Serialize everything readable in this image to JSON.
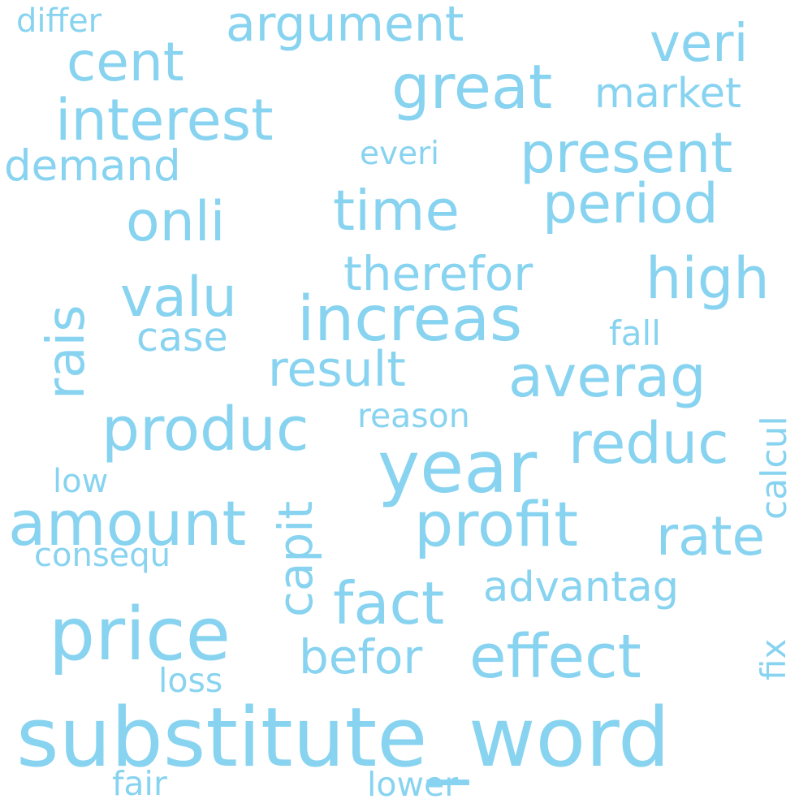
{
  "color": "#87d3f0",
  "words": [
    {
      "id": "substitute_word",
      "text": "substitute_word"
    },
    {
      "id": "price",
      "text": "price"
    },
    {
      "id": "year",
      "text": "year"
    },
    {
      "id": "increas",
      "text": "increas"
    },
    {
      "id": "amount",
      "text": "amount"
    },
    {
      "id": "profit",
      "text": "profit"
    },
    {
      "id": "great",
      "text": "great"
    },
    {
      "id": "effect",
      "text": "effect"
    },
    {
      "id": "produc",
      "text": "produc"
    },
    {
      "id": "fact",
      "text": "fact"
    },
    {
      "id": "interest",
      "text": "interest"
    },
    {
      "id": "averag",
      "text": "averag"
    },
    {
      "id": "reduc",
      "text": "reduc"
    },
    {
      "id": "high",
      "text": "high"
    },
    {
      "id": "time",
      "text": "time"
    },
    {
      "id": "present",
      "text": "present"
    },
    {
      "id": "period",
      "text": "period"
    },
    {
      "id": "valu",
      "text": "valu"
    },
    {
      "id": "onli",
      "text": "onli"
    },
    {
      "id": "rate",
      "text": "rate"
    },
    {
      "id": "cent",
      "text": "cent"
    },
    {
      "id": "rais",
      "text": "rais"
    },
    {
      "id": "veri",
      "text": "veri"
    },
    {
      "id": "argument",
      "text": "argument"
    },
    {
      "id": "befor",
      "text": "befor"
    },
    {
      "id": "result",
      "text": "result"
    },
    {
      "id": "capit",
      "text": "capit"
    },
    {
      "id": "therefor",
      "text": "therefor"
    },
    {
      "id": "market",
      "text": "market"
    },
    {
      "id": "advantag",
      "text": "advantag"
    },
    {
      "id": "demand",
      "text": "demand"
    },
    {
      "id": "case",
      "text": "case"
    },
    {
      "id": "calcul",
      "text": "calcul"
    },
    {
      "id": "reason",
      "text": "reason"
    },
    {
      "id": "everi",
      "text": "everi"
    },
    {
      "id": "fall",
      "text": "fall"
    },
    {
      "id": "loss",
      "text": "loss"
    },
    {
      "id": "fix",
      "text": "fix"
    },
    {
      "id": "consequ",
      "text": "consequ"
    },
    {
      "id": "lower",
      "text": "lower"
    },
    {
      "id": "low",
      "text": "low"
    },
    {
      "id": "fair",
      "text": "fair"
    },
    {
      "id": "differ",
      "text": "differ"
    }
  ]
}
